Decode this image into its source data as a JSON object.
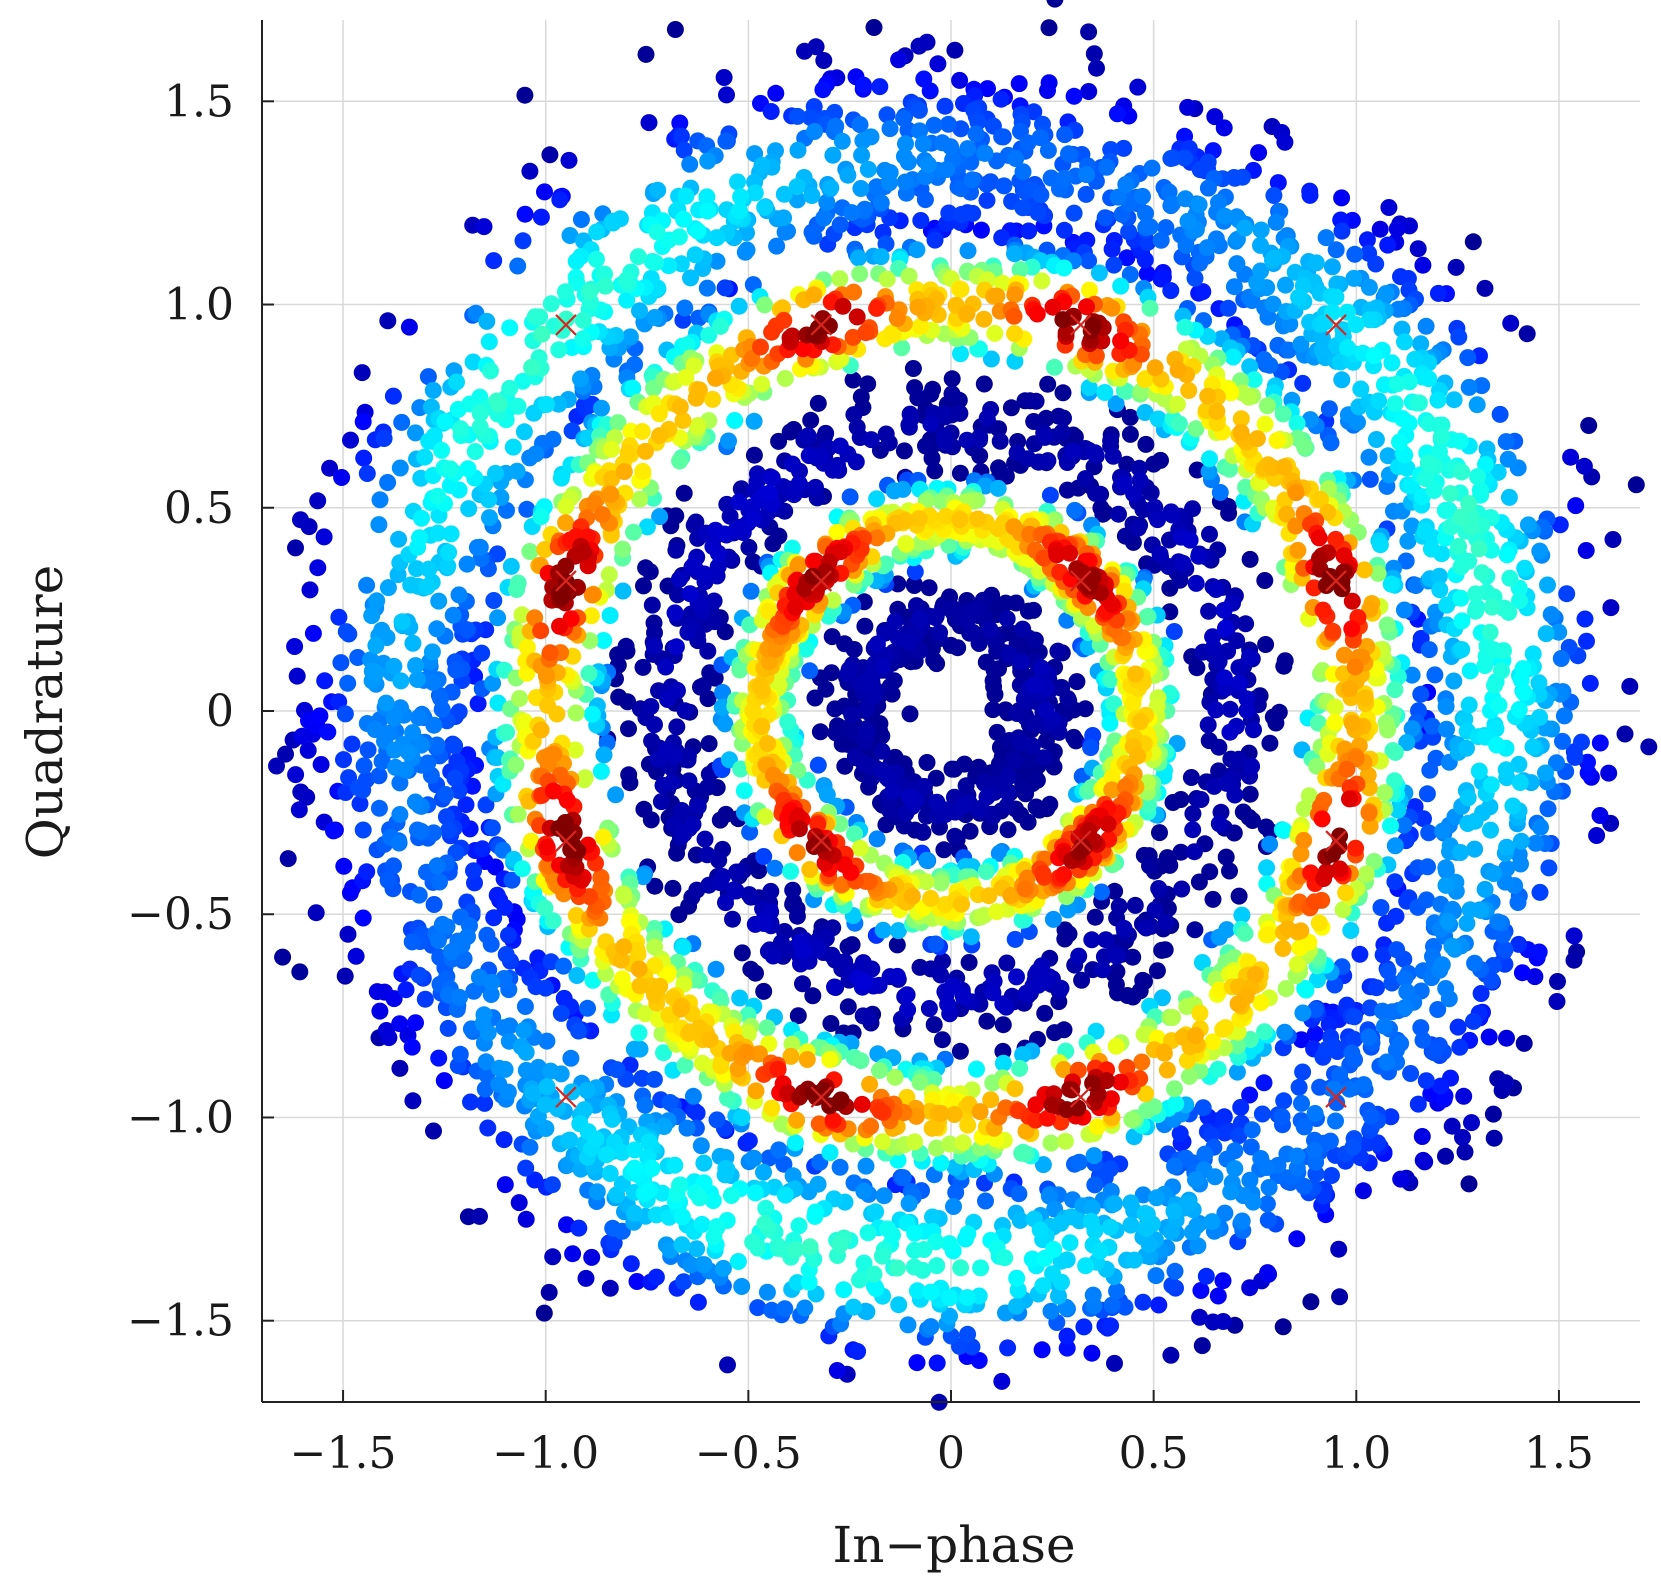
{
  "chart_data": {
    "type": "scatter",
    "title": "",
    "xlabel": "In−phase",
    "ylabel": "Quadrature",
    "xlim": [
      -1.7,
      1.7
    ],
    "ylim": [
      -1.7,
      1.7
    ],
    "grid": true,
    "legend": "none",
    "x_ticks": [
      {
        "value": -1.5,
        "label": "−1.5"
      },
      {
        "value": -1.0,
        "label": "−1.0"
      },
      {
        "value": -0.5,
        "label": "−0.5"
      },
      {
        "value": 0,
        "label": "0"
      },
      {
        "value": 0.5,
        "label": "0.5"
      },
      {
        "value": 1.0,
        "label": "1.0"
      },
      {
        "value": 1.5,
        "label": "1.5"
      }
    ],
    "y_ticks": [
      {
        "value": 1.5,
        "label": "1.5"
      },
      {
        "value": 1.0,
        "label": "1.0"
      },
      {
        "value": 0.5,
        "label": "0.5"
      },
      {
        "value": 0,
        "label": "0"
      },
      {
        "value": -0.5,
        "label": "−0.5"
      },
      {
        "value": -1.0,
        "label": "−1.0"
      },
      {
        "value": -1.5,
        "label": "−1.5"
      }
    ],
    "colormap": "jet",
    "density_rings": [
      {
        "radius": 1.36,
        "width": 0.16,
        "peak": 0.38
      },
      {
        "radius": 1.0,
        "width": 0.1,
        "peak": 0.95
      },
      {
        "radius": 0.7,
        "width": 0.06,
        "peak": 0.06
      },
      {
        "radius": 0.47,
        "width": 0.07,
        "peak": 0.92
      },
      {
        "radius": 0.23,
        "width": 0.05,
        "peak": 0.04
      }
    ],
    "reference_constellation": [
      {
        "x": -0.95,
        "y": 0.95
      },
      {
        "x": -0.32,
        "y": 0.95
      },
      {
        "x": 0.32,
        "y": 0.95
      },
      {
        "x": 0.95,
        "y": 0.95
      },
      {
        "x": -0.95,
        "y": 0.32
      },
      {
        "x": -0.32,
        "y": 0.32
      },
      {
        "x": 0.32,
        "y": 0.32
      },
      {
        "x": 0.95,
        "y": 0.32
      },
      {
        "x": -0.95,
        "y": -0.32
      },
      {
        "x": -0.32,
        "y": -0.32
      },
      {
        "x": 0.32,
        "y": -0.32
      },
      {
        "x": 0.95,
        "y": -0.32
      },
      {
        "x": -0.95,
        "y": -0.95
      },
      {
        "x": -0.32,
        "y": -0.95
      },
      {
        "x": 0.32,
        "y": -0.95
      },
      {
        "x": 0.95,
        "y": -0.95
      }
    ],
    "reference_marker_color": "#d7261e"
  }
}
